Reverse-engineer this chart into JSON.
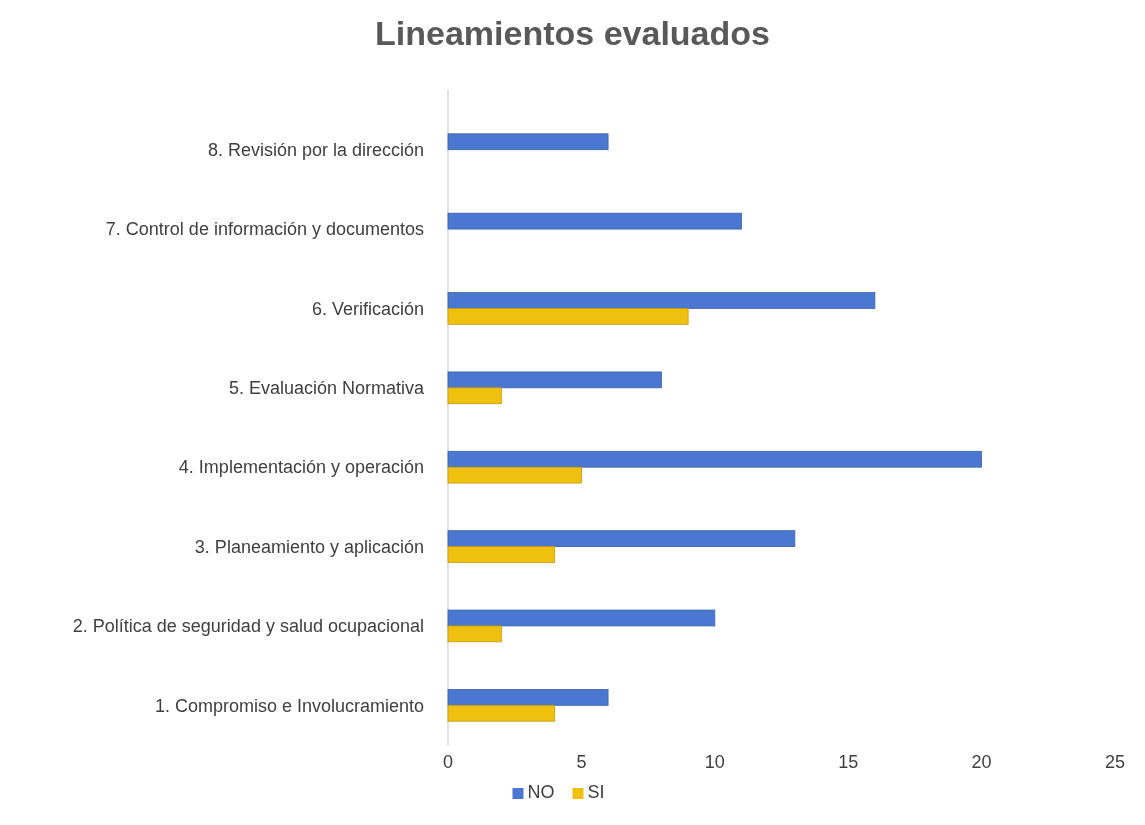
{
  "chart_data": {
    "type": "bar",
    "orientation": "horizontal",
    "title": "Lineamientos evaluados",
    "categories": [
      "8. Revisión por la dirección",
      "7. Control de información y documentos",
      "6. Verificación",
      "5. Evaluación Normativa",
      "4. Implementación y operación",
      "3. Planeamiento y aplicación",
      "2. Política de seguridad y salud ocupacional",
      "1. Compromiso e Involucramiento"
    ],
    "series": [
      {
        "name": "NO",
        "color": "#4a78d0",
        "values": [
          6,
          11,
          16,
          8,
          20,
          13,
          10,
          6
        ]
      },
      {
        "name": "SI",
        "color": "#f0c010",
        "values": [
          null,
          null,
          9,
          2,
          5,
          4,
          2,
          4
        ]
      }
    ],
    "xlim": [
      0,
      25
    ],
    "xticks": [
      0,
      5,
      10,
      15,
      20,
      25
    ],
    "grid": false,
    "legend": "bottom"
  }
}
